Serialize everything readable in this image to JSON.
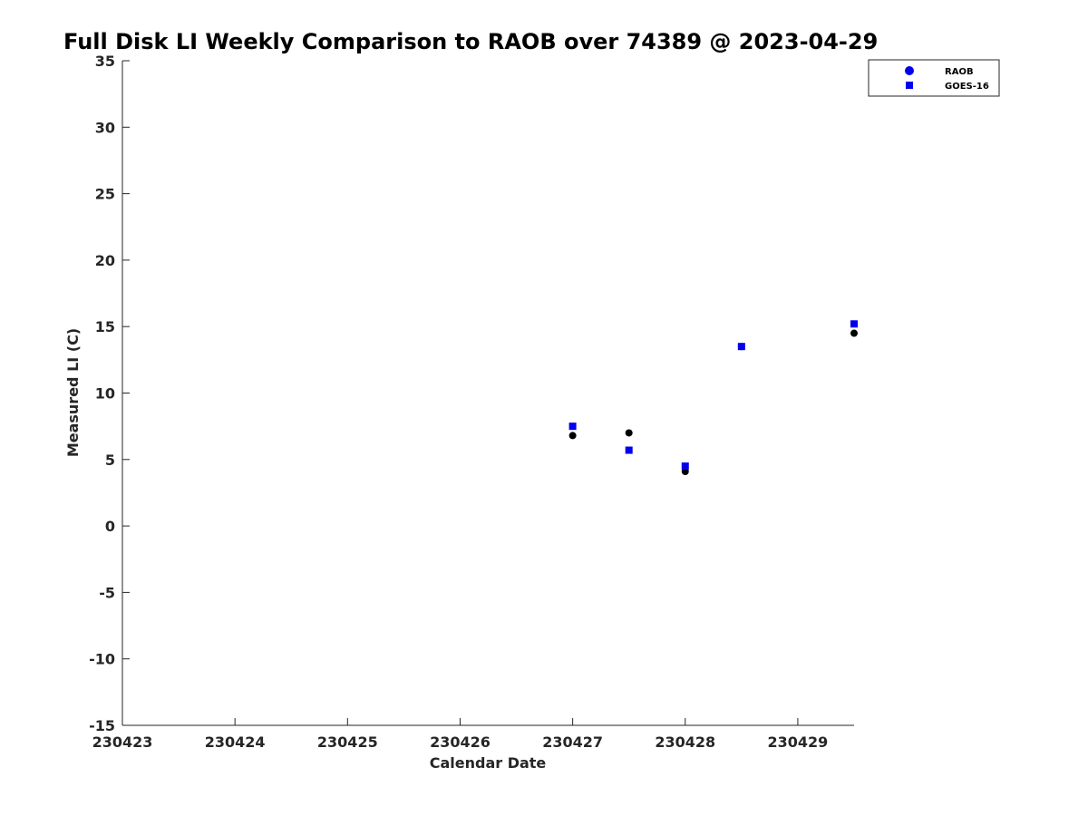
{
  "chart_data": {
    "type": "scatter",
    "title": "Full Disk LI Weekly Comparison to RAOB over 74389 @ 2023-04-29",
    "xlabel": "Calendar Date",
    "ylabel": "Measured LI (C)",
    "x_ticks": [
      "230423",
      "230424",
      "230425",
      "230426",
      "230427",
      "230428",
      "230429"
    ],
    "xlim": [
      "2023-04-23 00:00",
      "2023-04-29 12:00"
    ],
    "ylim": [
      -15,
      35
    ],
    "y_ticks": [
      -15,
      -10,
      -5,
      0,
      5,
      10,
      15,
      20,
      25,
      30,
      35
    ],
    "grid": false,
    "legend_position": "top-right",
    "series": [
      {
        "name": "RAOB",
        "marker": "circle",
        "color": "#000000",
        "legend_color": "#0000ee",
        "points": [
          {
            "x": "2023-04-27 00:00",
            "y": 6.8
          },
          {
            "x": "2023-04-27 12:00",
            "y": 7.0
          },
          {
            "x": "2023-04-28 00:00",
            "y": 4.1
          },
          {
            "x": "2023-04-28 12:00",
            "y": 13.5
          },
          {
            "x": "2023-04-29 12:00",
            "y": 14.5
          }
        ]
      },
      {
        "name": "GOES-16",
        "marker": "square",
        "color": "#0000ee",
        "legend_color": "#0000ee",
        "points": [
          {
            "x": "2023-04-27 00:00",
            "y": 7.5
          },
          {
            "x": "2023-04-27 12:00",
            "y": 5.7
          },
          {
            "x": "2023-04-28 00:00",
            "y": 4.5
          },
          {
            "x": "2023-04-28 12:00",
            "y": 13.5
          },
          {
            "x": "2023-04-29 12:00",
            "y": 15.2
          }
        ]
      }
    ]
  }
}
